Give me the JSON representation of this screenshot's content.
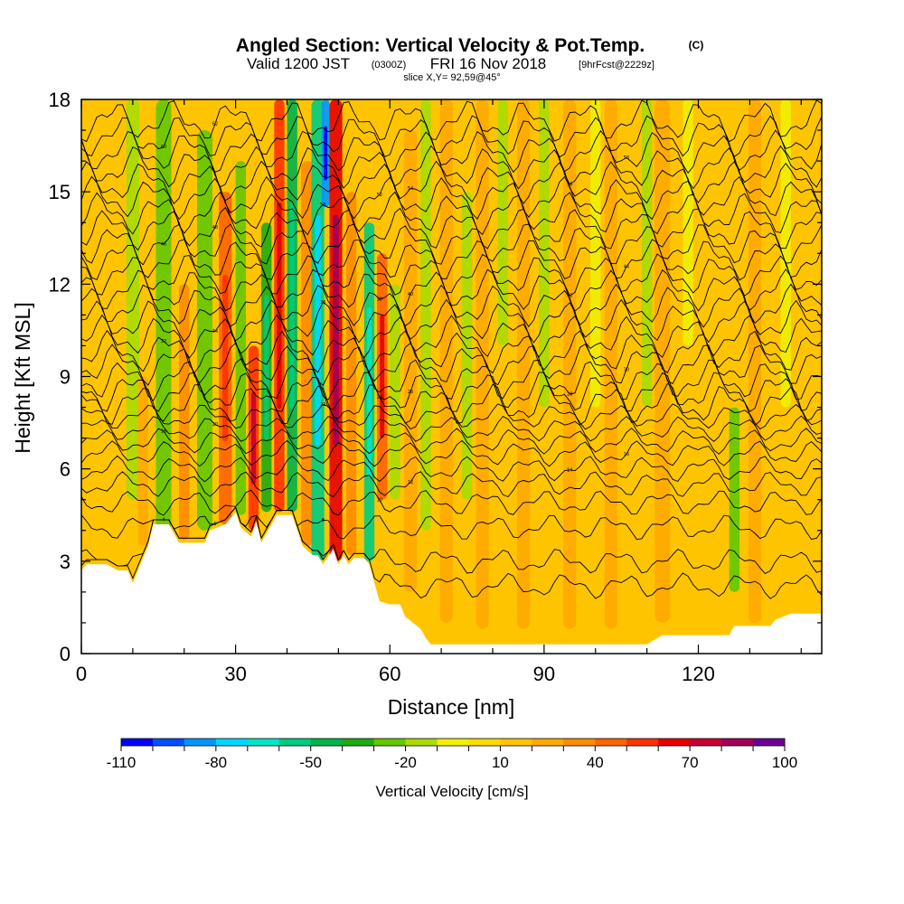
{
  "chart_data": {
    "type": "heatmap",
    "title": "Angled Section: Vertical Velocity & Pot.Temp.",
    "title_units": "(C)",
    "subtitle_main": "Valid 1200 JST",
    "subtitle_utc": "(0300Z)",
    "subtitle_date": "FRI 16 Nov 2018",
    "subtitle_fcst": "[9hrFcst@2229z]",
    "subtitle_slice": "slice X,Y= 92,59@45°",
    "xlabel": "Distance [nm]",
    "ylabel": "Height [Kft MSL]",
    "xlim": [
      0,
      144
    ],
    "ylim": [
      0,
      18
    ],
    "xticks": [
      "0",
      "30",
      "60",
      "90",
      "120"
    ],
    "yticks": [
      "0",
      "3",
      "6",
      "9",
      "12",
      "15",
      "18"
    ],
    "xtick_values": [
      0,
      30,
      60,
      90,
      120
    ],
    "ytick_values": [
      0,
      3,
      6,
      9,
      12,
      15,
      18
    ],
    "colorbar": {
      "label": "Vertical Velocity [cm/s]",
      "min": -110,
      "max": 100,
      "step": 10,
      "tick_labels": [
        "-110",
        "-80",
        "-50",
        "-20",
        "10",
        "40",
        "70",
        "100"
      ],
      "tick_values": [
        -110,
        -80,
        -50,
        -20,
        10,
        40,
        70,
        100
      ],
      "colors": [
        "#0000ff",
        "#0050ff",
        "#0096ff",
        "#00d7ff",
        "#00e6c8",
        "#00cc82",
        "#00b44b",
        "#1eaa14",
        "#64c800",
        "#aadc00",
        "#f0f000",
        "#ffdc00",
        "#ffc400",
        "#ffaa00",
        "#ff8c00",
        "#ff6400",
        "#ff3200",
        "#e60000",
        "#c80032",
        "#a0005a",
        "#6e0096"
      ]
    },
    "terrain_kft": [
      [
        0,
        2.7
      ],
      [
        1,
        2.9
      ],
      [
        5,
        2.9
      ],
      [
        7,
        2.7
      ],
      [
        9,
        2.7
      ],
      [
        10,
        2.3
      ],
      [
        11,
        2.7
      ],
      [
        13,
        3.5
      ],
      [
        14,
        4.2
      ],
      [
        17,
        4.2
      ],
      [
        19,
        3.6
      ],
      [
        24,
        3.6
      ],
      [
        25,
        4.0
      ],
      [
        28,
        4.2
      ],
      [
        30,
        4.6
      ],
      [
        31,
        4.1
      ],
      [
        33,
        3.8
      ],
      [
        34,
        4.3
      ],
      [
        35,
        3.6
      ],
      [
        37,
        4.2
      ],
      [
        38,
        4.5
      ],
      [
        41,
        4.5
      ],
      [
        43,
        3.5
      ],
      [
        45,
        3.2
      ],
      [
        46,
        3.2
      ],
      [
        47,
        2.9
      ],
      [
        49,
        3.4
      ],
      [
        50,
        2.9
      ],
      [
        51,
        3.2
      ],
      [
        52,
        2.9
      ],
      [
        53,
        3.1
      ],
      [
        55,
        3.1
      ],
      [
        56,
        2.9
      ],
      [
        57,
        2.3
      ],
      [
        58,
        1.7
      ],
      [
        60,
        1.6
      ],
      [
        62,
        1.6
      ],
      [
        63,
        1.2
      ],
      [
        66,
        0.8
      ],
      [
        67,
        0.5
      ],
      [
        68,
        0.3
      ],
      [
        91,
        0.3
      ],
      [
        103,
        0.3
      ],
      [
        110,
        0.3
      ],
      [
        113,
        0.6
      ],
      [
        126,
        0.6
      ],
      [
        127,
        0.9
      ],
      [
        134,
        0.9
      ],
      [
        135,
        1.1
      ],
      [
        138,
        1.3
      ],
      [
        144,
        1.3
      ]
    ],
    "potential_temperature_contours": {
      "levels_c": [
        4,
        6,
        8,
        10,
        12,
        14,
        16,
        18,
        20,
        22,
        24,
        26,
        28,
        30,
        32,
        34,
        36,
        38,
        40,
        42,
        44,
        46,
        48,
        50,
        52,
        54,
        56,
        58,
        60,
        62
      ],
      "base_height_kft": [
        2.2,
        3.0,
        4.1,
        4.9,
        5.5,
        6.0,
        6.5,
        6.9,
        7.3,
        7.7,
        8.1,
        8.5,
        8.9,
        9.4,
        9.8,
        10.3,
        10.8,
        11.3,
        11.8,
        12.3,
        12.8,
        13.3,
        13.8,
        14.3,
        14.8,
        15.3,
        15.8,
        16.3,
        16.8,
        17.3
      ]
    },
    "vertical_velocity_bands": [
      {
        "x": 6,
        "w": 2.0,
        "value": 15,
        "z0": 3.0,
        "z1": 18
      },
      {
        "x": 10,
        "w": 2.5,
        "value": -12,
        "z0": 5.0,
        "z1": 18
      },
      {
        "x": 12,
        "w": 2.0,
        "value": 20,
        "z0": 3.5,
        "z1": 9
      },
      {
        "x": 16,
        "w": 3.0,
        "value": -25,
        "z0": 4.0,
        "z1": 18
      },
      {
        "x": 20,
        "w": 2.0,
        "value": 30,
        "z0": 3.7,
        "z1": 12
      },
      {
        "x": 24,
        "w": 3.0,
        "value": -22,
        "z0": 4.0,
        "z1": 17
      },
      {
        "x": 28,
        "w": 2.5,
        "value": 40,
        "z0": 4.2,
        "z1": 15
      },
      {
        "x": 31,
        "w": 2.0,
        "value": -30,
        "z0": 4.5,
        "z1": 16
      },
      {
        "x": 33.5,
        "w": 2.0,
        "value": 55,
        "z0": 4.0,
        "z1": 10
      },
      {
        "x": 36,
        "w": 2.0,
        "value": -40,
        "z0": 4.6,
        "z1": 14
      },
      {
        "x": 38.5,
        "w": 2.0,
        "value": 50,
        "z0": 4.6,
        "z1": 18
      },
      {
        "x": 41,
        "w": 2.0,
        "value": -45,
        "z0": 4.6,
        "z1": 18
      },
      {
        "x": 44,
        "w": 2.5,
        "value": 35,
        "z0": 3.5,
        "z1": 16
      },
      {
        "x": 46,
        "w": 2.5,
        "value": -60,
        "z0": 3.0,
        "z1": 18
      },
      {
        "x": 47.5,
        "w": 1.5,
        "value": -90,
        "z0": 14.5,
        "z1": 18
      },
      {
        "x": 49.5,
        "w": 2.5,
        "value": 65,
        "z0": 3.0,
        "z1": 18
      },
      {
        "x": 52.5,
        "w": 2.0,
        "value": 35,
        "z0": 3.2,
        "z1": 15
      },
      {
        "x": 56,
        "w": 2.0,
        "value": -55,
        "z0": 3.0,
        "z1": 14
      },
      {
        "x": 58.5,
        "w": 2.0,
        "value": 45,
        "z0": 5.0,
        "z1": 13
      },
      {
        "x": 61,
        "w": 2.0,
        "value": -20,
        "z0": 5.0,
        "z1": 12
      },
      {
        "x": 64,
        "w": 2.5,
        "value": 25,
        "z0": 2.0,
        "z1": 17
      },
      {
        "x": 67,
        "w": 2.0,
        "value": -12,
        "z0": 4.0,
        "z1": 18
      },
      {
        "x": 71,
        "w": 2.5,
        "value": 20,
        "z0": 1.0,
        "z1": 18
      },
      {
        "x": 75,
        "w": 2.0,
        "value": -15,
        "z0": 5.0,
        "z1": 15
      },
      {
        "x": 78,
        "w": 2.5,
        "value": 20,
        "z0": 0.8,
        "z1": 18
      },
      {
        "x": 82,
        "w": 2.0,
        "value": -18,
        "z0": 10.0,
        "z1": 18
      },
      {
        "x": 86,
        "w": 2.5,
        "value": 22,
        "z0": 0.8,
        "z1": 18
      },
      {
        "x": 90,
        "w": 2.0,
        "value": -14,
        "z0": 8.0,
        "z1": 18
      },
      {
        "x": 95,
        "w": 2.5,
        "value": 25,
        "z0": 0.8,
        "z1": 18
      },
      {
        "x": 100,
        "w": 2.0,
        "value": -10,
        "z0": 8.0,
        "z1": 18
      },
      {
        "x": 103,
        "w": 2.5,
        "value": 20,
        "z0": 0.8,
        "z1": 18
      },
      {
        "x": 110,
        "w": 2.0,
        "value": -12,
        "z0": 8.0,
        "z1": 18
      },
      {
        "x": 113,
        "w": 3.0,
        "value": 22,
        "z0": 1.0,
        "z1": 18
      },
      {
        "x": 118,
        "w": 2.0,
        "value": -10,
        "z0": 10.0,
        "z1": 18
      },
      {
        "x": 121,
        "w": 2.5,
        "value": 18,
        "z0": 1.0,
        "z1": 18
      },
      {
        "x": 127,
        "w": 2.0,
        "value": -22,
        "z0": 2.0,
        "z1": 8
      },
      {
        "x": 131,
        "w": 2.5,
        "value": 20,
        "z0": 1.0,
        "z1": 18
      },
      {
        "x": 137,
        "w": 2.0,
        "value": -10,
        "z0": 8.0,
        "z1": 18
      },
      {
        "x": 141,
        "w": 2.5,
        "value": 18,
        "z0": 2.0,
        "z1": 18
      }
    ]
  }
}
